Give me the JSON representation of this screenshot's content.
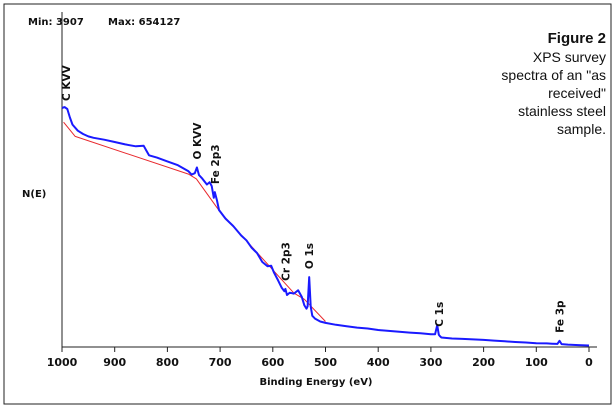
{
  "chart_data": {
    "type": "line",
    "xlabel": "Binding Energy (eV)",
    "ylabel": "N(E)",
    "xlim": [
      1000,
      0
    ],
    "x_ticks": [
      "1000",
      "900",
      "800",
      "700",
      "600",
      "500",
      "400",
      "300",
      "200",
      "100",
      "0"
    ],
    "x_tick_values": [
      1000,
      900,
      800,
      700,
      600,
      500,
      400,
      300,
      200,
      100,
      0
    ],
    "range_text": {
      "min": "Min: 3907",
      "max": "Max: 654127"
    },
    "ylim": [
      3907,
      654127
    ],
    "caption": {
      "title": "Figure 2",
      "lines": [
        "XPS survey",
        "spectra of an \"as",
        "received\"",
        "stainless steel",
        "sample."
      ]
    },
    "peaks": [
      {
        "label": "C KVV",
        "x": 992
      },
      {
        "label": "O KVV",
        "x": 744
      },
      {
        "label": "Fe 2p3",
        "x": 710
      },
      {
        "label": "Cr 2p3",
        "x": 576
      },
      {
        "label": "O 1s",
        "x": 531
      },
      {
        "label": "C 1s",
        "x": 285
      },
      {
        "label": "Fe 3p",
        "x": 56
      }
    ],
    "series": [
      {
        "color": "#1a1aff",
        "x": [
          1000,
          995,
          990,
          985,
          980,
          970,
          960,
          950,
          940,
          920,
          900,
          880,
          860,
          845,
          840,
          835,
          820,
          800,
          780,
          760,
          754,
          748,
          744,
          740,
          735,
          725,
          720,
          716,
          712,
          710,
          706,
          702,
          690,
          675,
          660,
          650,
          640,
          630,
          620,
          610,
          603,
          598,
          590,
          583,
          578,
          576,
          573,
          568,
          560,
          552,
          545,
          540,
          536,
          534,
          531,
          528,
          525,
          520,
          510,
          500,
          480,
          460,
          440,
          420,
          400,
          380,
          360,
          340,
          320,
          300,
          292,
          288,
          285,
          283,
          280,
          260,
          240,
          220,
          200,
          180,
          160,
          140,
          120,
          100,
          80,
          70,
          60,
          56,
          52,
          40,
          20,
          0
        ],
        "y": [
          510000,
          512000,
          508000,
          490000,
          475000,
          462000,
          455000,
          450000,
          447000,
          443000,
          438000,
          433000,
          429000,
          430000,
          420000,
          410000,
          405000,
          397000,
          389000,
          376000,
          369000,
          372000,
          384000,
          368000,
          362000,
          348000,
          353000,
          345000,
          320000,
          332000,
          315000,
          294000,
          276000,
          260000,
          240000,
          230000,
          214000,
          203000,
          184000,
          175000,
          176000,
          162000,
          145000,
          129000,
          122000,
          127000,
          114000,
          119000,
          117000,
          124000,
          110000,
          92000,
          85000,
          90000,
          152000,
          90000,
          70000,
          64000,
          58000,
          55000,
          51000,
          48000,
          45000,
          43000,
          40000,
          38000,
          36000,
          34500,
          33000,
          31000,
          31000,
          50000,
          30000,
          27000,
          24000,
          22000,
          21000,
          20000,
          19000,
          17500,
          16000,
          14500,
          13500,
          12000,
          11500,
          11000,
          10500,
          17000,
          10000,
          9000,
          8000,
          7000
        ]
      },
      {
        "color": "#e8282d",
        "x": [
          997,
          975,
          760,
          745,
          700,
          560,
          540,
          500
        ],
        "y": [
          480000,
          450000,
          370000,
          360000,
          290000,
          118000,
          105000,
          58000
        ]
      }
    ]
  }
}
